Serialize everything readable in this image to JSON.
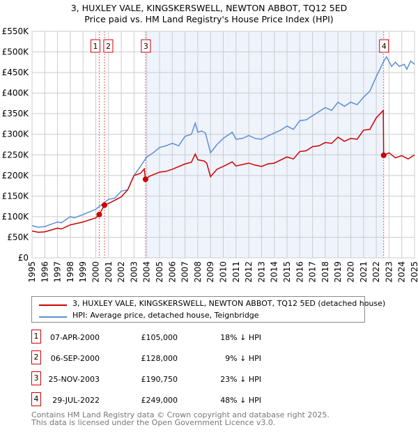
{
  "chart_data": {
    "type": "line",
    "title": "3, HUXLEY VALE, KINGSKERSWELL, NEWTON ABBOT, TQ12 5ED",
    "subtitle": "Price paid vs. HM Land Registry's House Price Index (HPI)",
    "xlim": [
      1995,
      2025
    ],
    "ylim": [
      0,
      550000
    ],
    "x_ticks": [
      "1995",
      "1996",
      "1997",
      "1998",
      "1999",
      "2000",
      "2001",
      "2002",
      "2003",
      "2004",
      "2005",
      "2006",
      "2007",
      "2008",
      "2009",
      "2010",
      "2011",
      "2012",
      "2013",
      "2014",
      "2015",
      "2016",
      "2017",
      "2018",
      "2019",
      "2020",
      "2021",
      "2022",
      "2023",
      "2024",
      "2025"
    ],
    "y_ticks": [
      {
        "v": 0,
        "l": "£0"
      },
      {
        "v": 50000,
        "l": "£50K"
      },
      {
        "v": 100000,
        "l": "£100K"
      },
      {
        "v": 150000,
        "l": "£150K"
      },
      {
        "v": 200000,
        "l": "£200K"
      },
      {
        "v": 250000,
        "l": "£250K"
      },
      {
        "v": 300000,
        "l": "£300K"
      },
      {
        "v": 350000,
        "l": "£350K"
      },
      {
        "v": 400000,
        "l": "£400K"
      },
      {
        "v": 450000,
        "l": "£450K"
      },
      {
        "v": 500000,
        "l": "£500K"
      },
      {
        "v": 550000,
        "l": "£550K"
      }
    ],
    "grid": true,
    "shaded_range": [
      2003.9,
      2022.58
    ],
    "series": [
      {
        "name": "3, HUXLEY VALE, KINGSKERSWELL, NEWTON ABBOT, TQ12 5ED (detached house)",
        "color": "#cc0000",
        "x": [
          1995,
          1995.5,
          1996,
          1997,
          1997.3,
          1998,
          1999,
          2000,
          2000.27,
          2000.68,
          2001,
          2001.5,
          2002,
          2002.5,
          2003,
          2003.5,
          2003.8,
          2003.9,
          2004.2,
          2005,
          2005.5,
          2006,
          2007,
          2007.5,
          2007.8,
          2008,
          2008.5,
          2008.7,
          2009,
          2009.5,
          2010,
          2010.7,
          2011,
          2012,
          2012.5,
          2013,
          2013.5,
          2014,
          2015,
          2015.5,
          2016,
          2016.5,
          2017,
          2017.5,
          2018,
          2018.5,
          2019,
          2019.5,
          2020,
          2020.5,
          2021,
          2021.5,
          2022,
          2022.55,
          2022.58,
          2023,
          2023.5,
          2024,
          2024.5,
          2025
        ],
        "y": [
          65000,
          62000,
          63000,
          72000,
          70000,
          80000,
          87000,
          97000,
          105000,
          128000,
          132000,
          140000,
          148000,
          165000,
          200000,
          205000,
          216000,
          190750,
          198000,
          208000,
          210000,
          215000,
          228000,
          232000,
          252000,
          238000,
          235000,
          230000,
          197000,
          215000,
          222000,
          233000,
          223000,
          230000,
          225000,
          222000,
          228000,
          230000,
          245000,
          240000,
          258000,
          260000,
          270000,
          272000,
          280000,
          278000,
          293000,
          283000,
          290000,
          288000,
          310000,
          312000,
          340000,
          358000,
          249000,
          255000,
          243000,
          248000,
          240000,
          250000
        ]
      },
      {
        "name": "HPI: Average price, detached house, Teignbridge",
        "color": "#5b8fd4",
        "x": [
          1995,
          1995.5,
          1996,
          1997,
          1997.3,
          1998,
          1998.3,
          1999,
          2000,
          2000.5,
          2001,
          2001.5,
          2002,
          2002.5,
          2003,
          2003.5,
          2004,
          2004.5,
          2005,
          2005.5,
          2006,
          2006.5,
          2007,
          2007.5,
          2007.8,
          2008,
          2008.3,
          2008.6,
          2009,
          2009.5,
          2010,
          2010.7,
          2011,
          2011.5,
          2012,
          2012.5,
          2013,
          2013.5,
          2014,
          2014.5,
          2015,
          2015.5,
          2016,
          2016.5,
          2017,
          2017.5,
          2018,
          2018.5,
          2019,
          2019.5,
          2020,
          2020.5,
          2021,
          2021.5,
          2022,
          2022.6,
          2022.8,
          2023.2,
          2023.5,
          2023.8,
          2024.2,
          2024.4,
          2024.7,
          2025
        ],
        "y": [
          78000,
          74000,
          76000,
          87000,
          85000,
          100000,
          97000,
          105000,
          118000,
          130000,
          142000,
          145000,
          162000,
          165000,
          200000,
          222000,
          245000,
          255000,
          268000,
          272000,
          278000,
          272000,
          295000,
          300000,
          327000,
          305000,
          308000,
          303000,
          255000,
          275000,
          290000,
          305000,
          288000,
          290000,
          297000,
          290000,
          288000,
          296000,
          303000,
          310000,
          320000,
          312000,
          333000,
          335000,
          345000,
          355000,
          365000,
          358000,
          378000,
          368000,
          378000,
          372000,
          390000,
          405000,
          440000,
          478000,
          488000,
          465000,
          475000,
          465000,
          470000,
          458000,
          478000,
          470000
        ]
      }
    ],
    "sales": [
      {
        "n": "1",
        "x": 2000.27,
        "date": "07-APR-2000",
        "price": "£105,000",
        "price_v": 105000,
        "hpi": "18% ↓ HPI"
      },
      {
        "n": "2",
        "x": 2000.68,
        "date": "06-SEP-2000",
        "price": "£128,000",
        "price_v": 128000,
        "hpi": "9% ↓ HPI"
      },
      {
        "n": "3",
        "x": 2003.9,
        "date": "25-NOV-2003",
        "price": "£190,750",
        "price_v": 190750,
        "hpi": "23% ↓ HPI"
      },
      {
        "n": "4",
        "x": 2022.58,
        "date": "29-JUL-2022",
        "price": "£249,000",
        "price_v": 249000,
        "hpi": "48% ↓ HPI"
      }
    ]
  },
  "legend": {
    "red": "3, HUXLEY VALE, KINGSKERSWELL, NEWTON ABBOT, TQ12 5ED (detached house)",
    "blue": "HPI: Average price, detached house, Teignbridge"
  },
  "footer": {
    "line1": "Contains HM Land Registry data © Crown copyright and database right 2025.",
    "line2": "This data is licensed under the Open Government Licence v3.0."
  }
}
